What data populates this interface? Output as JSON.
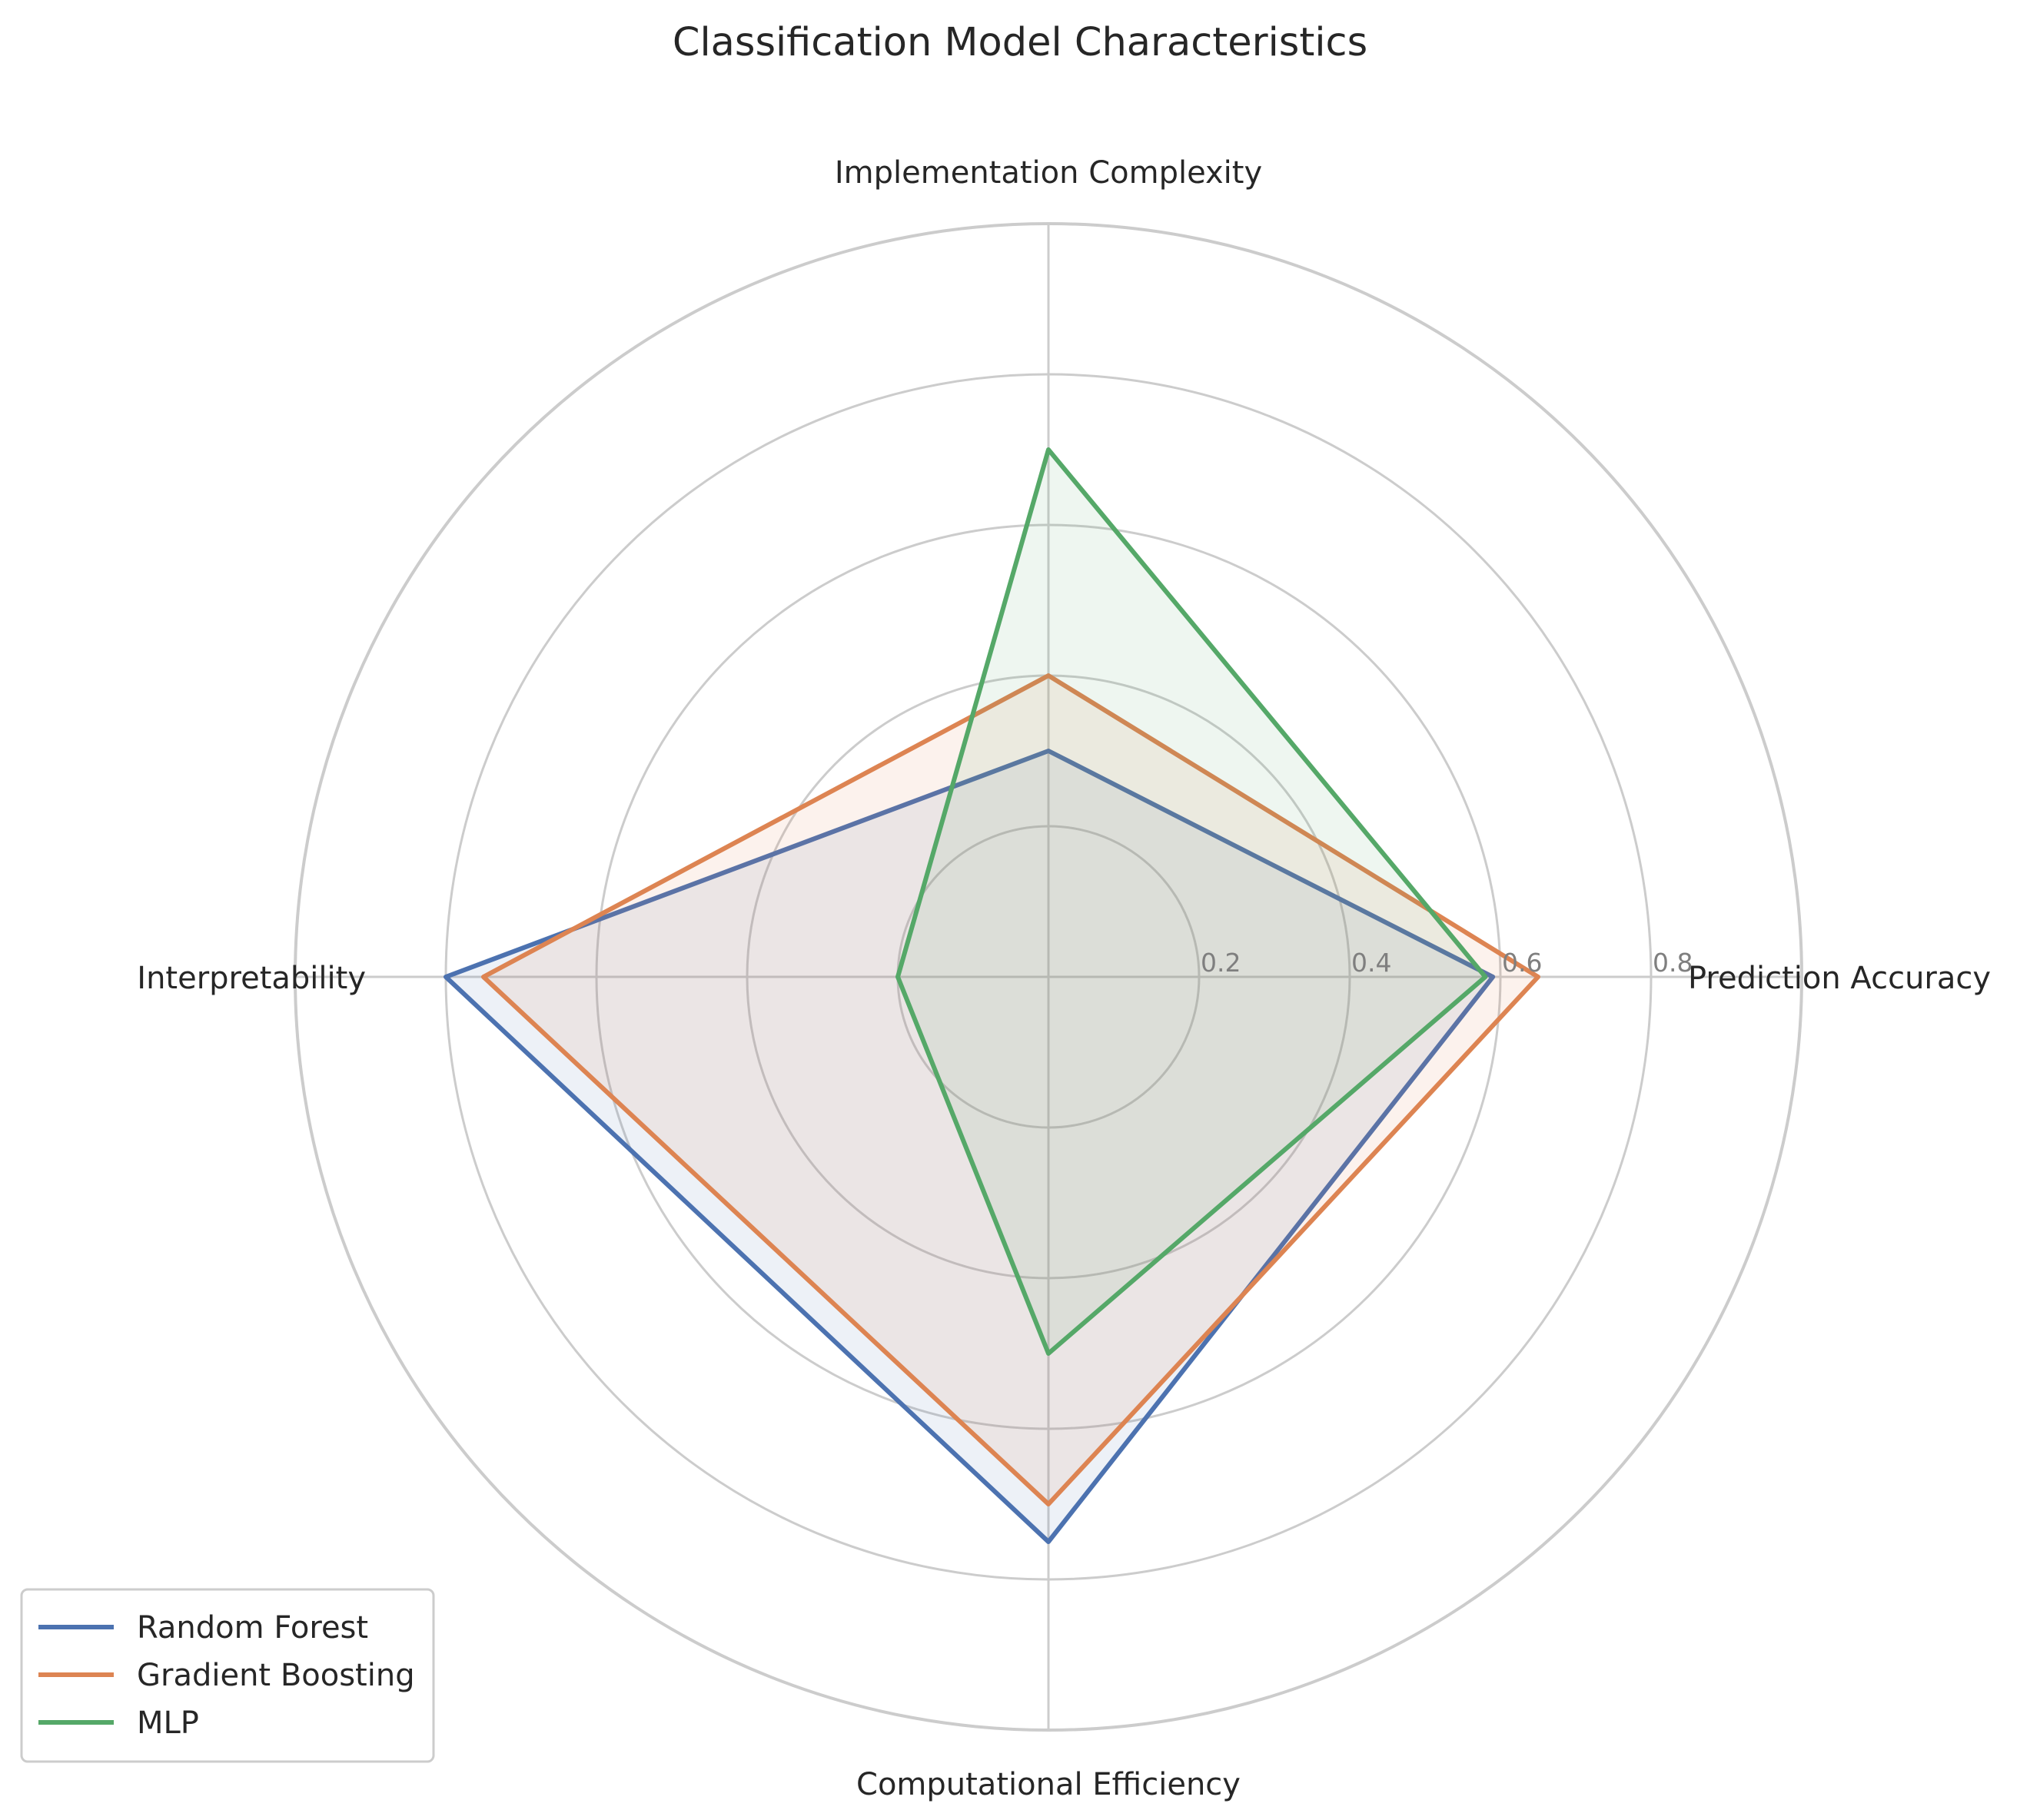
{
  "chart_data": {
    "type": "radar",
    "title": "Classification Model Characteristics",
    "axes": [
      "Prediction Accuracy",
      "Implementation Complexity",
      "Interpretability",
      "Computational Efficiency"
    ],
    "rlim": [
      0,
      1.0
    ],
    "r_ticks": [
      0.2,
      0.4,
      0.6,
      0.8
    ],
    "r_tick_labels": [
      "0.2",
      "0.4",
      "0.6",
      "0.8"
    ],
    "grid": true,
    "legend_position": "lower-left",
    "series": [
      {
        "name": "Random Forest",
        "color": "#4c72b0",
        "values": [
          0.59,
          0.3,
          0.8,
          0.75
        ]
      },
      {
        "name": "Gradient Boosting",
        "color": "#dd8452",
        "values": [
          0.65,
          0.4,
          0.75,
          0.7
        ]
      },
      {
        "name": "MLP",
        "color": "#55a868",
        "values": [
          0.58,
          0.7,
          0.2,
          0.5
        ]
      }
    ]
  }
}
